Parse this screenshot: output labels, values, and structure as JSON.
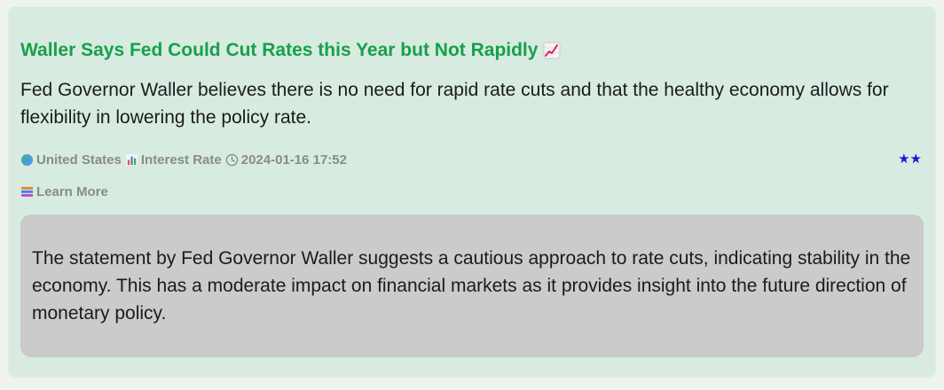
{
  "news": {
    "title": "Waller Says Fed Could Cut Rates this Year but Not Rapidly",
    "title_icon": "chart-increasing-icon",
    "summary": "Fed Governor Waller believes there is no need for rapid rate cuts and that the healthy economy allows for flexibility in lowering the policy rate.",
    "country": "United States",
    "country_icon": "globe-icon",
    "category": "Interest Rate",
    "category_icon": "bar-chart-icon",
    "timestamp": "2024-01-16 17:52",
    "timestamp_icon": "clock-icon",
    "importance_stars": "★★",
    "importance_level": 2,
    "learn_more_label": "Learn More",
    "learn_more_icon": "books-icon",
    "analysis": "The statement by Fed Governor Waller suggests a cautious approach to rate cuts, indicating stability in the economy. This has a moderate impact on financial markets as it provides insight into the future direction of monetary policy."
  },
  "colors": {
    "title": "#17a04a",
    "card_background": "#d7ebe1",
    "analysis_background": "#cbcbcb",
    "meta_text": "#8a8a8a",
    "stars": "#1a1ad8"
  }
}
